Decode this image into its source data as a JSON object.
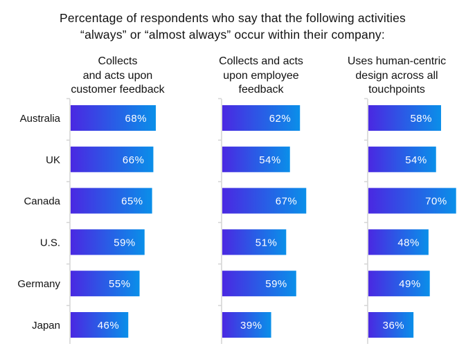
{
  "chart_data": {
    "type": "bar",
    "orientation": "horizontal",
    "title": [
      "Percentage of respondents who say that the following activities",
      "“always” or “almost always” occur within their company:"
    ],
    "categories": [
      "Australia",
      "UK",
      "Canada",
      "U.S.",
      "Germany",
      "Japan"
    ],
    "panels": [
      {
        "header": [
          "Collects",
          "and acts upon",
          "customer feedback"
        ],
        "values": [
          68,
          66,
          65,
          59,
          55,
          46
        ],
        "labels": [
          "68%",
          "66%",
          "65%",
          "59%",
          "55%",
          "46%"
        ]
      },
      {
        "header": [
          "Collects and acts",
          "upon employee",
          "feedback"
        ],
        "values": [
          62,
          54,
          67,
          51,
          59,
          39
        ],
        "labels": [
          "62%",
          "54%",
          "67%",
          "51%",
          "59%",
          "39%"
        ]
      },
      {
        "header": [
          "Uses human-centric",
          "design across all",
          "touchpoints"
        ],
        "values": [
          58,
          54,
          70,
          48,
          49,
          36
        ],
        "labels": [
          "58%",
          "54%",
          "70%",
          "48%",
          "49%",
          "36%"
        ]
      }
    ],
    "unit": "%",
    "xlim": [
      0,
      100
    ],
    "grid": false,
    "legend": "none",
    "colors": {
      "bar_start": "#4a28e2",
      "bar_end": "#0a8fe9",
      "axis": "#d4d4d4"
    }
  }
}
